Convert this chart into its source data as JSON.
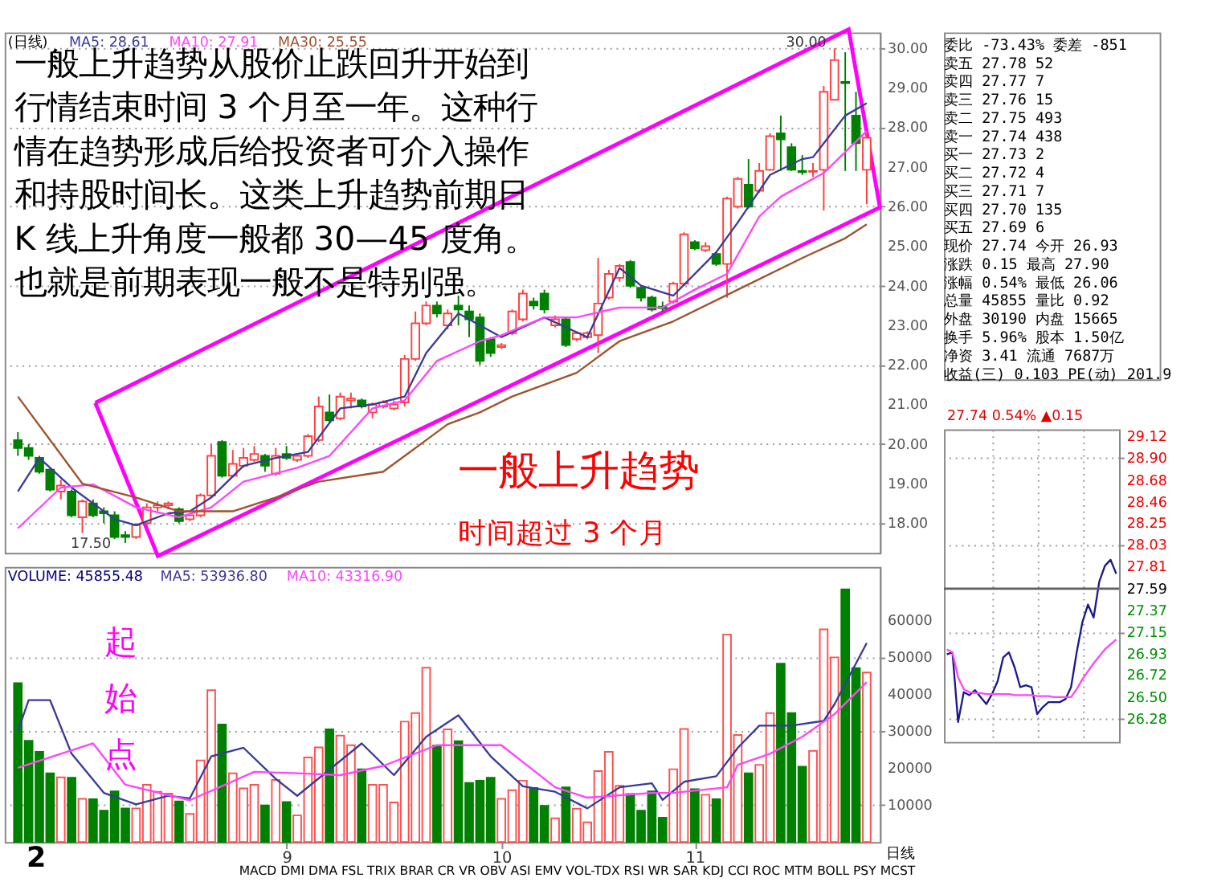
{
  "chart_data": [
    {
      "type": "candlestick",
      "categories": [
        null,
        null,
        null,
        null,
        null,
        null,
        null,
        null,
        null,
        null,
        null,
        null,
        null,
        null,
        null,
        null,
        null,
        null,
        null,
        null,
        null,
        null,
        null,
        null,
        null,
        "9",
        null,
        null,
        null,
        null,
        null,
        null,
        null,
        null,
        null,
        null,
        null,
        null,
        null,
        null,
        null,
        null,
        null,
        null,
        null,
        "10",
        null,
        null,
        null,
        null,
        null,
        null,
        null,
        null,
        null,
        null,
        null,
        null,
        null,
        null,
        null,
        null,
        null,
        "11",
        null,
        null,
        null,
        null,
        null,
        null,
        null,
        null,
        null,
        null,
        null,
        null,
        null,
        null,
        null,
        null
      ],
      "ohlc": [
        [
          20.1,
          20.3,
          19.7,
          19.9
        ],
        [
          19.9,
          20.0,
          19.6,
          19.7
        ],
        [
          19.65,
          19.7,
          19.25,
          19.3
        ],
        [
          19.35,
          19.4,
          18.8,
          18.85
        ],
        [
          18.8,
          19.1,
          18.6,
          18.95
        ],
        [
          18.8,
          18.85,
          18.15,
          18.2
        ],
        [
          18.15,
          18.6,
          17.75,
          18.55
        ],
        [
          18.5,
          18.6,
          18.15,
          18.2
        ],
        [
          18.3,
          18.4,
          18.0,
          18.25
        ],
        [
          18.2,
          18.3,
          17.6,
          17.65
        ],
        [
          17.7,
          17.8,
          17.5,
          17.65
        ],
        [
          17.65,
          18.0,
          17.6,
          17.95
        ],
        [
          18.0,
          18.5,
          17.95,
          18.4
        ],
        [
          18.4,
          18.55,
          18.3,
          18.45
        ],
        [
          18.45,
          18.55,
          18.35,
          18.5
        ],
        [
          18.35,
          18.4,
          18.0,
          18.05
        ],
        [
          18.1,
          18.25,
          18.05,
          18.2
        ],
        [
          18.2,
          18.75,
          18.15,
          18.7
        ],
        [
          18.7,
          20.0,
          18.65,
          19.7
        ],
        [
          20.05,
          20.1,
          19.15,
          19.2
        ],
        [
          19.2,
          19.85,
          19.15,
          19.5
        ],
        [
          19.45,
          19.9,
          19.4,
          19.65
        ],
        [
          19.6,
          19.95,
          19.55,
          19.75
        ],
        [
          19.7,
          19.75,
          19.3,
          19.45
        ],
        [
          19.25,
          19.9,
          19.2,
          19.7
        ],
        [
          19.75,
          19.95,
          19.6,
          19.65
        ],
        [
          19.6,
          19.75,
          19.55,
          19.7
        ],
        [
          19.7,
          20.25,
          19.65,
          20.2
        ],
        [
          20.1,
          21.2,
          20.05,
          20.95
        ],
        [
          20.8,
          21.25,
          20.55,
          20.6
        ],
        [
          20.65,
          21.3,
          20.6,
          21.2
        ],
        [
          21.1,
          21.3,
          20.9,
          21.15
        ],
        [
          21.1,
          21.15,
          20.9,
          20.95
        ],
        [
          20.8,
          21.05,
          20.65,
          21.0
        ],
        [
          20.95,
          21.1,
          20.9,
          21.05
        ],
        [
          20.9,
          21.1,
          20.85,
          21.0
        ],
        [
          21.05,
          22.25,
          20.95,
          22.15
        ],
        [
          22.15,
          23.35,
          22.1,
          23.05
        ],
        [
          23.05,
          23.6,
          23.0,
          23.5
        ],
        [
          23.5,
          23.6,
          23.2,
          23.3
        ],
        [
          23.0,
          23.4,
          22.9,
          23.3
        ],
        [
          23.5,
          23.75,
          23.0,
          23.4
        ],
        [
          23.35,
          23.5,
          22.7,
          23.15
        ],
        [
          23.2,
          23.3,
          22.0,
          22.1
        ],
        [
          22.65,
          22.7,
          22.2,
          22.3
        ],
        [
          22.45,
          22.55,
          22.4,
          22.5
        ],
        [
          22.8,
          23.4,
          22.75,
          23.35
        ],
        [
          23.15,
          23.9,
          23.1,
          23.8
        ],
        [
          23.6,
          23.7,
          23.4,
          23.5
        ],
        [
          23.8,
          23.9,
          23.3,
          23.4
        ],
        [
          23.0,
          23.25,
          22.95,
          23.15
        ],
        [
          23.15,
          23.2,
          22.45,
          22.5
        ],
        [
          22.65,
          22.85,
          22.6,
          22.8
        ],
        [
          22.7,
          22.85,
          22.65,
          22.8
        ],
        [
          22.75,
          24.7,
          22.3,
          23.55
        ],
        [
          23.7,
          24.4,
          23.65,
          24.3
        ],
        [
          24.2,
          24.55,
          24.1,
          24.5
        ],
        [
          24.6,
          24.65,
          23.95,
          24.0
        ],
        [
          23.95,
          24.0,
          23.6,
          23.7
        ],
        [
          23.7,
          23.75,
          23.35,
          23.4
        ],
        [
          23.47,
          23.6,
          23.35,
          23.43
        ],
        [
          23.6,
          24.1,
          23.55,
          24.05
        ],
        [
          24.05,
          25.35,
          24.0,
          25.3
        ],
        [
          25.1,
          25.15,
          24.9,
          24.95
        ],
        [
          24.9,
          25.1,
          24.85,
          25.0
        ],
        [
          24.8,
          24.85,
          24.5,
          24.55
        ],
        [
          24.55,
          26.25,
          23.7,
          26.2
        ],
        [
          26.0,
          26.75,
          25.95,
          26.7
        ],
        [
          26.55,
          27.2,
          25.95,
          26.0
        ],
        [
          26.4,
          27.1,
          26.35,
          26.9
        ],
        [
          26.93,
          27.85,
          26.9,
          27.78
        ],
        [
          27.85,
          28.3,
          26.9,
          27.7
        ],
        [
          27.5,
          27.6,
          26.9,
          26.93
        ],
        [
          26.9,
          27.3,
          26.8,
          26.87
        ],
        [
          26.88,
          27.1,
          26.75,
          26.9
        ],
        [
          26.93,
          29.05,
          25.9,
          28.9
        ],
        [
          28.7,
          30.0,
          28.7,
          29.7
        ],
        [
          29.15,
          29.9,
          26.9,
          29.12
        ],
        [
          28.3,
          28.9,
          26.9,
          27.6
        ],
        [
          26.93,
          27.9,
          26.06,
          27.74
        ]
      ],
      "series": [
        {
          "name": "MA5: 28.61",
          "type": "line",
          "color": "#3a3a9a",
          "values": [
            18.8,
            null,
            19.65,
            null,
            null,
            18.9,
            null,
            null,
            null,
            18.1,
            null,
            17.95,
            null,
            null,
            18.25,
            null,
            18.3,
            null,
            18.65,
            null,
            null,
            19.45,
            null,
            null,
            19.65,
            null,
            null,
            19.8,
            null,
            null,
            20.9,
            null,
            null,
            21.0,
            null,
            null,
            21.2,
            null,
            22.3,
            null,
            null,
            23.3,
            null,
            null,
            null,
            22.7,
            null,
            null,
            null,
            23.2,
            null,
            null,
            null,
            22.7,
            null,
            null,
            24.45,
            null,
            24.0,
            null,
            null,
            23.75,
            null,
            null,
            null,
            24.85,
            null,
            25.6,
            null,
            null,
            26.8,
            null,
            null,
            27.2,
            27.25,
            null,
            null,
            28.3,
            null,
            28.61
          ]
        },
        {
          "name": "MA10: 27.91",
          "type": "line",
          "color": "#ff44ff",
          "values": [
            17.87,
            null,
            null,
            null,
            18.9,
            null,
            null,
            18.98,
            null,
            null,
            null,
            18.4,
            null,
            null,
            null,
            18.15,
            null,
            null,
            18.4,
            null,
            null,
            19.05,
            null,
            null,
            null,
            null,
            19.4,
            null,
            null,
            19.7,
            null,
            null,
            null,
            20.9,
            null,
            null,
            21.1,
            null,
            null,
            22.1,
            null,
            null,
            null,
            22.6,
            null,
            22.75,
            null,
            null,
            null,
            23.2,
            null,
            null,
            23.2,
            null,
            null,
            null,
            23.45,
            null,
            null,
            null,
            23.45,
            null,
            null,
            23.9,
            null,
            null,
            24.3,
            null,
            null,
            25.75,
            null,
            26.25,
            null,
            null,
            null,
            26.85,
            null,
            null,
            null,
            27.91
          ]
        },
        {
          "name": "MA30: 25.55",
          "type": "line",
          "color": "#a0522d",
          "values": [
            21.2,
            null,
            null,
            null,
            null,
            null,
            19.0,
            null,
            null,
            null,
            null,
            18.65,
            null,
            null,
            null,
            18.3,
            null,
            null,
            null,
            null,
            18.3,
            null,
            null,
            null,
            18.65,
            null,
            null,
            null,
            19.05,
            null,
            null,
            null,
            null,
            null,
            19.3,
            null,
            null,
            null,
            20.1,
            null,
            20.5,
            null,
            null,
            20.8,
            null,
            null,
            21.2,
            null,
            null,
            null,
            null,
            null,
            21.8,
            null,
            null,
            null,
            22.6,
            null,
            null,
            null,
            null,
            23.1,
            null,
            null,
            null,
            null,
            null,
            23.9,
            null,
            null,
            null,
            null,
            null,
            24.7,
            null,
            null,
            null,
            25.2,
            null,
            25.55
          ]
        }
      ],
      "ylim": [
        17.25,
        30.4
      ],
      "yticks": [
        {
          "value": 18,
          "label": "18.00"
        },
        {
          "value": 19,
          "label": "19.00"
        },
        {
          "value": 20,
          "label": "20.00"
        },
        {
          "value": 21,
          "label": "21.00"
        },
        {
          "value": 22,
          "label": "22.00"
        },
        {
          "value": 23,
          "label": "23.00"
        },
        {
          "value": 24,
          "label": "24.00"
        },
        {
          "value": 25,
          "label": "25.00"
        },
        {
          "value": 26,
          "label": "26.00"
        },
        {
          "value": 27,
          "label": "27.00"
        },
        {
          "value": 28,
          "label": "28.00"
        },
        {
          "value": 29,
          "label": "29.00"
        },
        {
          "value": 30,
          "label": "30.00"
        }
      ],
      "grid": "y",
      "tick_labels": "y",
      "annotations": [
        "(日线)",
        "一般上升趋势从股价止跌回升开始到行情结束时间 3 个月至一年。这种行情在趋势形成后给投资者可介入操作和持股时间长。这类上升趋势前期日 K 线上升角度一般都 30—45 度角。也就是前期表现一般不是特别强。",
        "一般上升趋势",
        "时间超过 3 个月",
        "30.00",
        "17.50"
      ]
    },
    {
      "type": "bar",
      "categories": [
        null,
        null,
        null,
        null,
        null,
        null,
        null,
        null,
        null,
        null,
        null,
        null,
        null,
        null,
        null,
        null,
        null,
        null,
        null,
        null,
        null,
        null,
        null,
        null,
        null,
        "9",
        null,
        null,
        null,
        null,
        null,
        null,
        null,
        null,
        null,
        null,
        null,
        null,
        null,
        null,
        null,
        null,
        null,
        null,
        null,
        "10",
        null,
        null,
        null,
        null,
        null,
        null,
        null,
        null,
        null,
        null,
        null,
        null,
        null,
        null,
        null,
        null,
        null,
        "11",
        null,
        null,
        null,
        null,
        null,
        null,
        null,
        null,
        null,
        null,
        null,
        null,
        null,
        null,
        null,
        null
      ],
      "series": [
        {
          "type": "bar",
          "values": [
            43000,
            27400,
            24400,
            18600,
            17500,
            17400,
            11700,
            11600,
            8500,
            13700,
            9100,
            9100,
            15500,
            13600,
            13100,
            11000,
            7600,
            22100,
            41100,
            31800,
            18600,
            14500,
            15500,
            9900,
            16800,
            10800,
            7200,
            22900,
            25600,
            30500,
            28800,
            26200,
            19700,
            15500,
            15500,
            10700,
            32600,
            34900,
            47200,
            26100,
            30500,
            27300,
            16000,
            16600,
            17400,
            11700,
            14000,
            16600,
            14600,
            9800,
            6400,
            14800,
            9000,
            5300,
            19200,
            24400,
            15200,
            13000,
            8500,
            13700,
            6600,
            19700,
            30600,
            14300,
            12800,
            11600,
            56200,
            29000,
            18600,
            20900,
            34900,
            48300,
            34900,
            20400,
            24700,
            57600,
            50000,
            68400,
            47100,
            45900
          ],
          "colors": [
            "#008000",
            "#008000",
            "#008000",
            "#008000",
            "#ff5050",
            "#008000",
            "#ff5050",
            "#008000",
            "#008000",
            "#008000",
            "#008000",
            "#ff5050",
            "#ff5050",
            "#ff5050",
            "#ff5050",
            "#008000",
            "#ff5050",
            "#ff5050",
            "#ff5050",
            "#008000",
            "#ff5050",
            "#ff5050",
            "#ff5050",
            "#008000",
            "#ff5050",
            "#008000",
            "#ff5050",
            "#ff5050",
            "#ff5050",
            "#008000",
            "#ff5050",
            "#ff5050",
            "#008000",
            "#ff5050",
            "#ff5050",
            "#ff5050",
            "#ff5050",
            "#ff5050",
            "#ff5050",
            "#008000",
            "#ff5050",
            "#008000",
            "#008000",
            "#008000",
            "#008000",
            "#ff5050",
            "#ff5050",
            "#ff5050",
            "#008000",
            "#008000",
            "#ff5050",
            "#008000",
            "#ff5050",
            "#ff5050",
            "#ff5050",
            "#ff5050",
            "#ff5050",
            "#008000",
            "#008000",
            "#008000",
            "#008000",
            "#ff5050",
            "#ff5050",
            "#008000",
            "#ff5050",
            "#008000",
            "#ff5050",
            "#ff5050",
            "#008000",
            "#ff5050",
            "#ff5050",
            "#008000",
            "#008000",
            "#008000",
            "#ff5050",
            "#ff5050",
            "#ff5050",
            "#008000",
            "#008000",
            "#ff5050"
          ]
        },
        {
          "name": "MA5: 53936.80",
          "type": "line",
          "color": "#3a3a9a",
          "values": [
            30000,
            38400,
            null,
            38400,
            null,
            23900,
            null,
            null,
            13300,
            null,
            null,
            10200,
            null,
            null,
            12500,
            null,
            11800,
            null,
            23200,
            null,
            null,
            25500,
            null,
            null,
            17100,
            null,
            12500,
            null,
            null,
            null,
            null,
            null,
            26700,
            null,
            null,
            18100,
            null,
            null,
            28500,
            null,
            null,
            34300,
            null,
            null,
            23200,
            null,
            null,
            15100,
            null,
            null,
            13600,
            null,
            null,
            9100,
            null,
            null,
            14800,
            null,
            null,
            15900,
            11400,
            null,
            16300,
            null,
            null,
            17800,
            null,
            25500,
            null,
            31500,
            null,
            null,
            31500,
            null,
            null,
            32800,
            37300,
            null,
            null,
            53900
          ]
        },
        {
          "name": "MA10: 43316.90",
          "type": "line",
          "color": "#ff44ff",
          "values": [
            20100,
            null,
            null,
            null,
            null,
            null,
            null,
            26700,
            null,
            null,
            15500,
            null,
            null,
            null,
            null,
            null,
            11300,
            null,
            null,
            null,
            null,
            null,
            19000,
            null,
            null,
            null,
            18600,
            null,
            null,
            null,
            18100,
            null,
            null,
            null,
            20600,
            null,
            null,
            null,
            null,
            26200,
            null,
            null,
            null,
            null,
            null,
            26200,
            null,
            null,
            null,
            null,
            14800,
            null,
            null,
            12000,
            null,
            null,
            null,
            null,
            null,
            13300,
            null,
            13300,
            null,
            null,
            null,
            null,
            14800,
            20900,
            null,
            null,
            23900,
            null,
            null,
            28500,
            null,
            null,
            34600,
            null,
            null,
            43300
          ]
        }
      ],
      "ylim": [
        0,
        74500
      ],
      "yticks": [
        10000,
        20000,
        30000,
        40000,
        50000,
        60000
      ],
      "grid": "y",
      "annotations": [
        "VOLUME: 45855.48",
        "起始点",
        "2",
        "MACD DMI DMA FSL TRIX BRAR CR VR OBV ASI EMV VOL-TDX RSI WR SAR KDJ CCI ROC MTM BOLL PSY MCST",
        "日线"
      ]
    },
    {
      "type": "other",
      "annotations": [
        "委比 -73.43% 委差 -851",
        "卖五 27.78 52",
        "卖四 27.77 7",
        "卖三 27.76 15",
        "卖二 27.75 493",
        "卖一 27.74 438",
        "买一 27.73 2",
        "买二 27.72 4",
        "买三 27.71 7",
        "买四 27.70 135",
        "买五 27.69 6",
        "现价 27.74 今开 26.93",
        "涨跌 0.15 最高 27.90",
        "涨幅 0.54% 最低 26.06",
        "总量 45855 量比 0.92",
        "外盘 30190 内盘 15665",
        "换手 5.96% 股本 1.50亿",
        "净资 3.41 流通 7687万",
        "收益(三) 0.103 PE(动) 201.9"
      ]
    },
    {
      "type": "line",
      "categories": [
        null,
        null,
        null,
        null,
        null,
        null,
        null,
        null,
        null,
        null,
        null,
        null,
        null,
        null,
        null,
        null,
        null,
        null,
        null,
        null,
        null,
        null,
        null,
        null,
        null,
        null,
        null,
        null,
        null,
        null,
        null
      ],
      "series": [
        {
          "color": "#1a1a8c",
          "values": [
            26.93,
            26.95,
            26.25,
            26.55,
            26.52,
            26.57,
            26.5,
            26.43,
            26.53,
            26.66,
            26.9,
            26.95,
            26.8,
            26.6,
            26.62,
            26.6,
            26.33,
            26.4,
            26.45,
            26.45,
            26.45,
            26.48,
            26.6,
            26.95,
            27.25,
            27.43,
            27.3,
            27.66,
            27.82,
            27.88,
            27.74
          ]
        },
        {
          "color": "#ff44ff",
          "values": [
            26.98,
            26.95,
            26.7,
            26.58,
            26.55,
            26.54,
            26.54,
            26.53,
            26.53,
            26.53,
            26.53,
            26.53,
            26.52,
            26.52,
            26.52,
            26.52,
            26.51,
            26.51,
            26.51,
            26.5,
            26.5,
            26.5,
            26.5,
            26.58,
            26.68,
            26.76,
            26.84,
            26.91,
            26.98,
            27.03,
            27.08
          ]
        }
      ],
      "ylim": [
        26.05,
        29.19
      ],
      "yticks": [
        {
          "value": 26.28,
          "label": "26.28"
        },
        {
          "value": 26.5,
          "label": "26.50"
        },
        {
          "value": 26.72,
          "label": "26.72"
        },
        {
          "value": 26.93,
          "label": "26.93"
        },
        {
          "value": 27.15,
          "label": "27.15"
        },
        {
          "value": 27.37,
          "label": "27.37"
        },
        {
          "value": 27.59,
          "label": "27.59"
        },
        {
          "value": 27.81,
          "label": "27.81"
        },
        {
          "value": 28.03,
          "label": "28.03"
        },
        {
          "value": 28.25,
          "label": "28.25"
        },
        {
          "value": 28.46,
          "label": "28.46"
        },
        {
          "value": 28.68,
          "label": "28.68"
        },
        {
          "value": 28.9,
          "label": "28.90"
        },
        {
          "value": 29.12,
          "label": "29.12"
        }
      ],
      "ref_lines": [
        {
          "axis": "y",
          "value": 27.59,
          "color": "#606060"
        }
      ],
      "grid": true,
      "tick_labels": "y",
      "annotations": [
        "27.74 0.54% ▲0.15"
      ]
    }
  ]
}
